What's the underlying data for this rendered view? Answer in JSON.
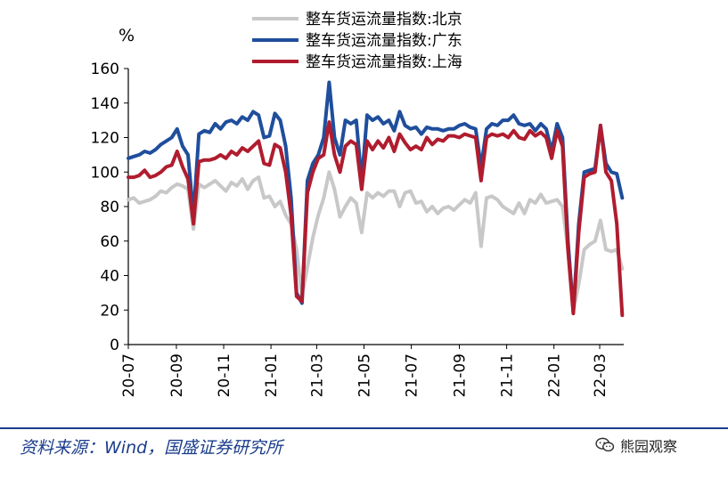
{
  "chart_data": {
    "type": "line",
    "unit_label": "%",
    "ylim": [
      0,
      160
    ],
    "yticks": [
      0,
      20,
      40,
      60,
      80,
      100,
      120,
      140,
      160
    ],
    "x_start": "2020-07",
    "x_end": "2022-04",
    "xticks": [
      "20-07",
      "20-09",
      "20-11",
      "21-01",
      "21-03",
      "21-05",
      "21-07",
      "21-09",
      "21-11",
      "22-01",
      "22-03"
    ],
    "grid": false,
    "legend_position": "top",
    "series": [
      {
        "name": "整车货运流量指数:北京",
        "color": "#c8c8c8",
        "points": [
          [
            "2020-07-01",
            84
          ],
          [
            "2020-07-08",
            85
          ],
          [
            "2020-07-15",
            82
          ],
          [
            "2020-07-22",
            83
          ],
          [
            "2020-07-29",
            84
          ],
          [
            "2020-08-05",
            86
          ],
          [
            "2020-08-12",
            89
          ],
          [
            "2020-08-19",
            88
          ],
          [
            "2020-08-26",
            91
          ],
          [
            "2020-09-02",
            93
          ],
          [
            "2020-09-09",
            92
          ],
          [
            "2020-09-16",
            90
          ],
          [
            "2020-09-23",
            67
          ],
          [
            "2020-09-30",
            93
          ],
          [
            "2020-10-07",
            91
          ],
          [
            "2020-10-14",
            93
          ],
          [
            "2020-10-21",
            95
          ],
          [
            "2020-10-28",
            92
          ],
          [
            "2020-11-04",
            89
          ],
          [
            "2020-11-11",
            94
          ],
          [
            "2020-11-18",
            92
          ],
          [
            "2020-11-25",
            96
          ],
          [
            "2020-12-02",
            90
          ],
          [
            "2020-12-09",
            95
          ],
          [
            "2020-12-16",
            97
          ],
          [
            "2020-12-23",
            85
          ],
          [
            "2020-12-30",
            86
          ],
          [
            "2021-01-06",
            80
          ],
          [
            "2021-01-13",
            83
          ],
          [
            "2021-01-20",
            75
          ],
          [
            "2021-01-27",
            70
          ],
          [
            "2021-02-03",
            55
          ],
          [
            "2021-02-10",
            28
          ],
          [
            "2021-02-17",
            45
          ],
          [
            "2021-02-24",
            62
          ],
          [
            "2021-03-03",
            75
          ],
          [
            "2021-03-10",
            85
          ],
          [
            "2021-03-17",
            100
          ],
          [
            "2021-03-24",
            90
          ],
          [
            "2021-03-31",
            74
          ],
          [
            "2021-04-07",
            80
          ],
          [
            "2021-04-14",
            85
          ],
          [
            "2021-04-21",
            82
          ],
          [
            "2021-04-28",
            65
          ],
          [
            "2021-05-05",
            88
          ],
          [
            "2021-05-12",
            85
          ],
          [
            "2021-05-19",
            88
          ],
          [
            "2021-05-26",
            86
          ],
          [
            "2021-06-02",
            89
          ],
          [
            "2021-06-09",
            89
          ],
          [
            "2021-06-16",
            80
          ],
          [
            "2021-06-23",
            88
          ],
          [
            "2021-06-30",
            89
          ],
          [
            "2021-07-07",
            82
          ],
          [
            "2021-07-14",
            83
          ],
          [
            "2021-07-21",
            77
          ],
          [
            "2021-07-28",
            80
          ],
          [
            "2021-08-04",
            76
          ],
          [
            "2021-08-11",
            79
          ],
          [
            "2021-08-18",
            80
          ],
          [
            "2021-08-25",
            78
          ],
          [
            "2021-09-01",
            81
          ],
          [
            "2021-09-08",
            84
          ],
          [
            "2021-09-15",
            82
          ],
          [
            "2021-09-22",
            88
          ],
          [
            "2021-09-29",
            57
          ],
          [
            "2021-10-06",
            85
          ],
          [
            "2021-10-13",
            86
          ],
          [
            "2021-10-20",
            84
          ],
          [
            "2021-10-27",
            80
          ],
          [
            "2021-11-03",
            78
          ],
          [
            "2021-11-10",
            76
          ],
          [
            "2021-11-17",
            82
          ],
          [
            "2021-11-24",
            76
          ],
          [
            "2021-12-01",
            84
          ],
          [
            "2021-12-08",
            82
          ],
          [
            "2021-12-15",
            87
          ],
          [
            "2021-12-22",
            82
          ],
          [
            "2021-12-29",
            83
          ],
          [
            "2022-01-05",
            84
          ],
          [
            "2022-01-12",
            80
          ],
          [
            "2022-01-19",
            55
          ],
          [
            "2022-01-26",
            20
          ],
          [
            "2022-02-02",
            35
          ],
          [
            "2022-02-09",
            55
          ],
          [
            "2022-02-16",
            58
          ],
          [
            "2022-02-23",
            60
          ],
          [
            "2022-03-02",
            72
          ],
          [
            "2022-03-09",
            55
          ],
          [
            "2022-03-16",
            54
          ],
          [
            "2022-03-23",
            55
          ],
          [
            "2022-03-30",
            44
          ]
        ]
      },
      {
        "name": "整车货运流量指数:广东",
        "color": "#1f4e9c",
        "points": [
          [
            "2020-07-01",
            108
          ],
          [
            "2020-07-08",
            109
          ],
          [
            "2020-07-15",
            110
          ],
          [
            "2020-07-22",
            112
          ],
          [
            "2020-07-29",
            111
          ],
          [
            "2020-08-05",
            113
          ],
          [
            "2020-08-12",
            116
          ],
          [
            "2020-08-19",
            118
          ],
          [
            "2020-08-26",
            120
          ],
          [
            "2020-09-02",
            125
          ],
          [
            "2020-09-09",
            115
          ],
          [
            "2020-09-16",
            110
          ],
          [
            "2020-09-23",
            75
          ],
          [
            "2020-09-30",
            122
          ],
          [
            "2020-10-07",
            124
          ],
          [
            "2020-10-14",
            123
          ],
          [
            "2020-10-21",
            128
          ],
          [
            "2020-10-28",
            125
          ],
          [
            "2020-11-04",
            129
          ],
          [
            "2020-11-11",
            130
          ],
          [
            "2020-11-18",
            128
          ],
          [
            "2020-11-25",
            132
          ],
          [
            "2020-12-02",
            130
          ],
          [
            "2020-12-09",
            135
          ],
          [
            "2020-12-16",
            133
          ],
          [
            "2020-12-23",
            120
          ],
          [
            "2020-12-30",
            121
          ],
          [
            "2021-01-06",
            134
          ],
          [
            "2021-01-13",
            130
          ],
          [
            "2021-01-20",
            115
          ],
          [
            "2021-01-27",
            85
          ],
          [
            "2021-02-03",
            30
          ],
          [
            "2021-02-10",
            24
          ],
          [
            "2021-02-17",
            95
          ],
          [
            "2021-02-24",
            105
          ],
          [
            "2021-03-03",
            110
          ],
          [
            "2021-03-10",
            120
          ],
          [
            "2021-03-17",
            152
          ],
          [
            "2021-03-24",
            120
          ],
          [
            "2021-03-31",
            110
          ],
          [
            "2021-04-07",
            130
          ],
          [
            "2021-04-14",
            128
          ],
          [
            "2021-04-21",
            130
          ],
          [
            "2021-04-28",
            95
          ],
          [
            "2021-05-05",
            133
          ],
          [
            "2021-05-12",
            130
          ],
          [
            "2021-05-19",
            132
          ],
          [
            "2021-05-26",
            128
          ],
          [
            "2021-06-02",
            130
          ],
          [
            "2021-06-09",
            124
          ],
          [
            "2021-06-16",
            135
          ],
          [
            "2021-06-23",
            127
          ],
          [
            "2021-06-30",
            125
          ],
          [
            "2021-07-07",
            126
          ],
          [
            "2021-07-14",
            122
          ],
          [
            "2021-07-21",
            126
          ],
          [
            "2021-07-28",
            125
          ],
          [
            "2021-08-04",
            125
          ],
          [
            "2021-08-11",
            124
          ],
          [
            "2021-08-18",
            125
          ],
          [
            "2021-08-25",
            125
          ],
          [
            "2021-09-01",
            127
          ],
          [
            "2021-09-08",
            128
          ],
          [
            "2021-09-15",
            126
          ],
          [
            "2021-09-22",
            125
          ],
          [
            "2021-09-29",
            103
          ],
          [
            "2021-10-06",
            125
          ],
          [
            "2021-10-13",
            128
          ],
          [
            "2021-10-20",
            127
          ],
          [
            "2021-10-27",
            130
          ],
          [
            "2021-11-03",
            130
          ],
          [
            "2021-11-10",
            133
          ],
          [
            "2021-11-17",
            128
          ],
          [
            "2021-11-24",
            127
          ],
          [
            "2021-12-01",
            128
          ],
          [
            "2021-12-08",
            124
          ],
          [
            "2021-12-15",
            128
          ],
          [
            "2021-12-22",
            125
          ],
          [
            "2021-12-29",
            112
          ],
          [
            "2022-01-05",
            128
          ],
          [
            "2022-01-12",
            120
          ],
          [
            "2022-01-19",
            60
          ],
          [
            "2022-01-26",
            19
          ],
          [
            "2022-02-02",
            70
          ],
          [
            "2022-02-09",
            100
          ],
          [
            "2022-02-16",
            101
          ],
          [
            "2022-02-23",
            102
          ],
          [
            "2022-03-02",
            127
          ],
          [
            "2022-03-09",
            105
          ],
          [
            "2022-03-16",
            100
          ],
          [
            "2022-03-23",
            99
          ],
          [
            "2022-03-30",
            85
          ]
        ]
      },
      {
        "name": "整车货运流量指数:上海",
        "color": "#b01c2e",
        "points": [
          [
            "2020-07-01",
            97
          ],
          [
            "2020-07-08",
            97
          ],
          [
            "2020-07-15",
            98
          ],
          [
            "2020-07-22",
            101
          ],
          [
            "2020-07-29",
            97
          ],
          [
            "2020-08-05",
            98
          ],
          [
            "2020-08-12",
            100
          ],
          [
            "2020-08-19",
            103
          ],
          [
            "2020-08-26",
            104
          ],
          [
            "2020-09-02",
            112
          ],
          [
            "2020-09-09",
            103
          ],
          [
            "2020-09-16",
            96
          ],
          [
            "2020-09-23",
            70
          ],
          [
            "2020-09-30",
            106
          ],
          [
            "2020-10-07",
            107
          ],
          [
            "2020-10-14",
            107
          ],
          [
            "2020-10-21",
            108
          ],
          [
            "2020-10-28",
            110
          ],
          [
            "2020-11-04",
            108
          ],
          [
            "2020-11-11",
            112
          ],
          [
            "2020-11-18",
            110
          ],
          [
            "2020-11-25",
            114
          ],
          [
            "2020-12-02",
            112
          ],
          [
            "2020-12-09",
            115
          ],
          [
            "2020-12-16",
            118
          ],
          [
            "2020-12-23",
            105
          ],
          [
            "2020-12-30",
            104
          ],
          [
            "2021-01-06",
            116
          ],
          [
            "2021-01-13",
            114
          ],
          [
            "2021-01-20",
            100
          ],
          [
            "2021-01-27",
            75
          ],
          [
            "2021-02-03",
            28
          ],
          [
            "2021-02-10",
            25
          ],
          [
            "2021-02-17",
            88
          ],
          [
            "2021-02-24",
            100
          ],
          [
            "2021-03-03",
            108
          ],
          [
            "2021-03-10",
            110
          ],
          [
            "2021-03-17",
            129
          ],
          [
            "2021-03-24",
            110
          ],
          [
            "2021-03-31",
            100
          ],
          [
            "2021-04-07",
            115
          ],
          [
            "2021-04-14",
            118
          ],
          [
            "2021-04-21",
            116
          ],
          [
            "2021-04-28",
            90
          ],
          [
            "2021-05-05",
            118
          ],
          [
            "2021-05-12",
            113
          ],
          [
            "2021-05-19",
            118
          ],
          [
            "2021-05-26",
            114
          ],
          [
            "2021-06-02",
            120
          ],
          [
            "2021-06-09",
            112
          ],
          [
            "2021-06-16",
            122
          ],
          [
            "2021-06-23",
            117
          ],
          [
            "2021-06-30",
            113
          ],
          [
            "2021-07-07",
            115
          ],
          [
            "2021-07-14",
            113
          ],
          [
            "2021-07-21",
            120
          ],
          [
            "2021-07-28",
            116
          ],
          [
            "2021-08-04",
            119
          ],
          [
            "2021-08-11",
            118
          ],
          [
            "2021-08-18",
            121
          ],
          [
            "2021-08-25",
            121
          ],
          [
            "2021-09-01",
            120
          ],
          [
            "2021-09-08",
            122
          ],
          [
            "2021-09-15",
            121
          ],
          [
            "2021-09-22",
            120
          ],
          [
            "2021-09-29",
            95
          ],
          [
            "2021-10-06",
            120
          ],
          [
            "2021-10-13",
            122
          ],
          [
            "2021-10-20",
            121
          ],
          [
            "2021-10-27",
            122
          ],
          [
            "2021-11-03",
            120
          ],
          [
            "2021-11-10",
            124
          ],
          [
            "2021-11-17",
            120
          ],
          [
            "2021-11-24",
            119
          ],
          [
            "2021-12-01",
            124
          ],
          [
            "2021-12-08",
            121
          ],
          [
            "2021-12-15",
            123
          ],
          [
            "2021-12-22",
            120
          ],
          [
            "2021-12-29",
            108
          ],
          [
            "2022-01-05",
            124
          ],
          [
            "2022-01-12",
            115
          ],
          [
            "2022-01-19",
            55
          ],
          [
            "2022-01-26",
            18
          ],
          [
            "2022-02-02",
            65
          ],
          [
            "2022-02-09",
            97
          ],
          [
            "2022-02-16",
            99
          ],
          [
            "2022-02-23",
            100
          ],
          [
            "2022-03-02",
            127
          ],
          [
            "2022-03-09",
            100
          ],
          [
            "2022-03-16",
            95
          ],
          [
            "2022-03-23",
            70
          ],
          [
            "2022-03-30",
            17
          ]
        ]
      }
    ]
  },
  "footer": {
    "source": "资料来源：Wind，国盛证券研究所",
    "watermark": "熊园观察",
    "watermark_icon": "wechat-icon"
  }
}
